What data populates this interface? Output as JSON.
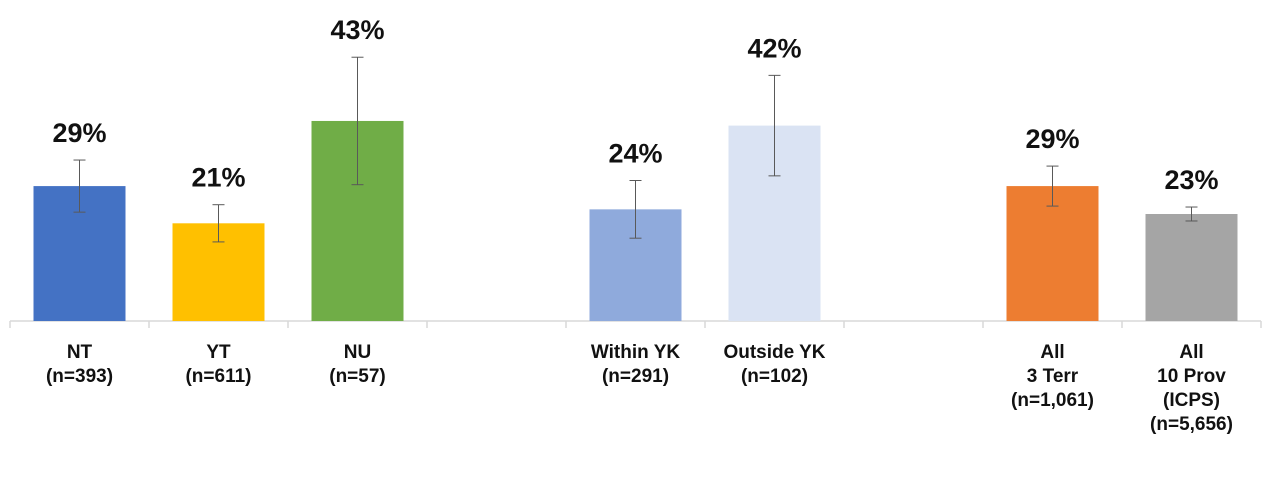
{
  "chart_data": {
    "type": "bar",
    "categories": [
      "NT\n(n=393)",
      "YT\n(n=611)",
      "NU\n(n=57)",
      null,
      "Within YK\n(n=291)",
      "Outside YK\n(n=102)",
      null,
      "All\n3 Terr\n(n=1,061)",
      "All\n10 Prov\n(ICPS)\n(n=5,656)"
    ],
    "values": [
      29,
      21,
      43,
      null,
      24,
      42,
      null,
      29,
      23
    ],
    "value_labels": [
      "29%",
      "21%",
      "43%",
      null,
      "24%",
      "42%",
      null,
      "29%",
      "23%"
    ],
    "errors": [
      5.6,
      4,
      13.7,
      null,
      6.2,
      10.8,
      null,
      4.3,
      1.5
    ],
    "colors": [
      "#4472c4",
      "#ffc000",
      "#70ad47",
      null,
      "#8faadc",
      "#dae3f3",
      null,
      "#ed7d31",
      "#a5a5a5"
    ],
    "ylim": [
      0,
      69
    ]
  }
}
